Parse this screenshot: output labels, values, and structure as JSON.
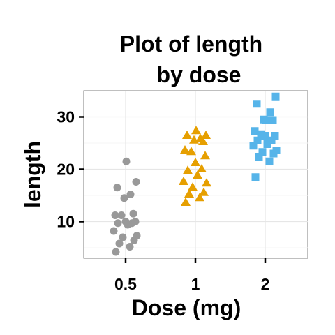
{
  "chart_data": {
    "type": "scatter",
    "title": "Plot of length\nby dose",
    "xlabel": "Dose (mg)",
    "ylabel": "length",
    "categories": [
      "0.5",
      "1",
      "2"
    ],
    "yticks": [
      10,
      20,
      30
    ],
    "ylim": [
      3,
      35
    ],
    "grid": true,
    "legend": "none",
    "series": [
      {
        "category": "0.5",
        "marker": "circle",
        "color": "#999999",
        "values": [
          4.2,
          5.2,
          5.8,
          6.4,
          7.0,
          7.3,
          8.2,
          9.4,
          9.7,
          9.7,
          10.0,
          10.0,
          11.2,
          11.2,
          11.5,
          14.5,
          15.2,
          16.5,
          17.6,
          21.5
        ]
      },
      {
        "category": "1",
        "marker": "triangle",
        "color": "#E69F00",
        "values": [
          13.6,
          14.5,
          15.2,
          15.5,
          16.5,
          17.3,
          17.6,
          18.8,
          19.7,
          20.0,
          21.2,
          22.5,
          23.3,
          23.6,
          25.2,
          25.5,
          25.8,
          26.4,
          26.4,
          27.3
        ]
      },
      {
        "category": "2",
        "marker": "square",
        "color": "#56B4E9",
        "values": [
          18.5,
          21.5,
          22.4,
          23.0,
          23.3,
          23.6,
          24.5,
          24.8,
          25.5,
          25.5,
          26.4,
          26.4,
          26.7,
          27.3,
          29.4,
          29.5,
          30.9,
          32.5,
          33.9,
          29.4
        ]
      }
    ]
  }
}
